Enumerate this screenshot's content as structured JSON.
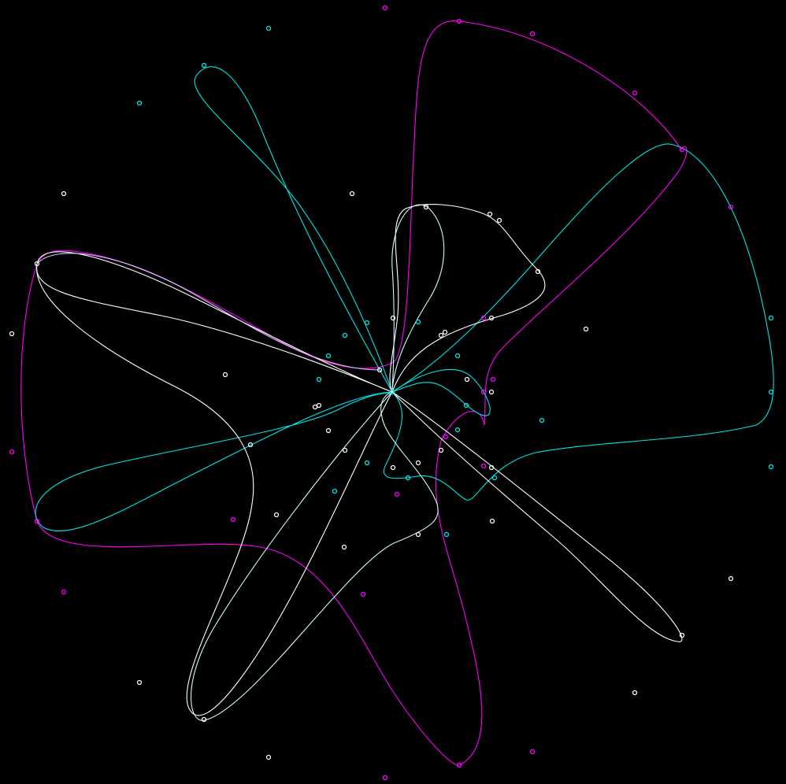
{
  "canvas": {
    "background": "#000000"
  },
  "colors": {
    "magenta": "#ff00ff",
    "cyan": "#00e5e5",
    "white": "#ffffff",
    "pale_cyan": "#c8ffff",
    "lavender": "#d8c8ff"
  },
  "legend": []
}
